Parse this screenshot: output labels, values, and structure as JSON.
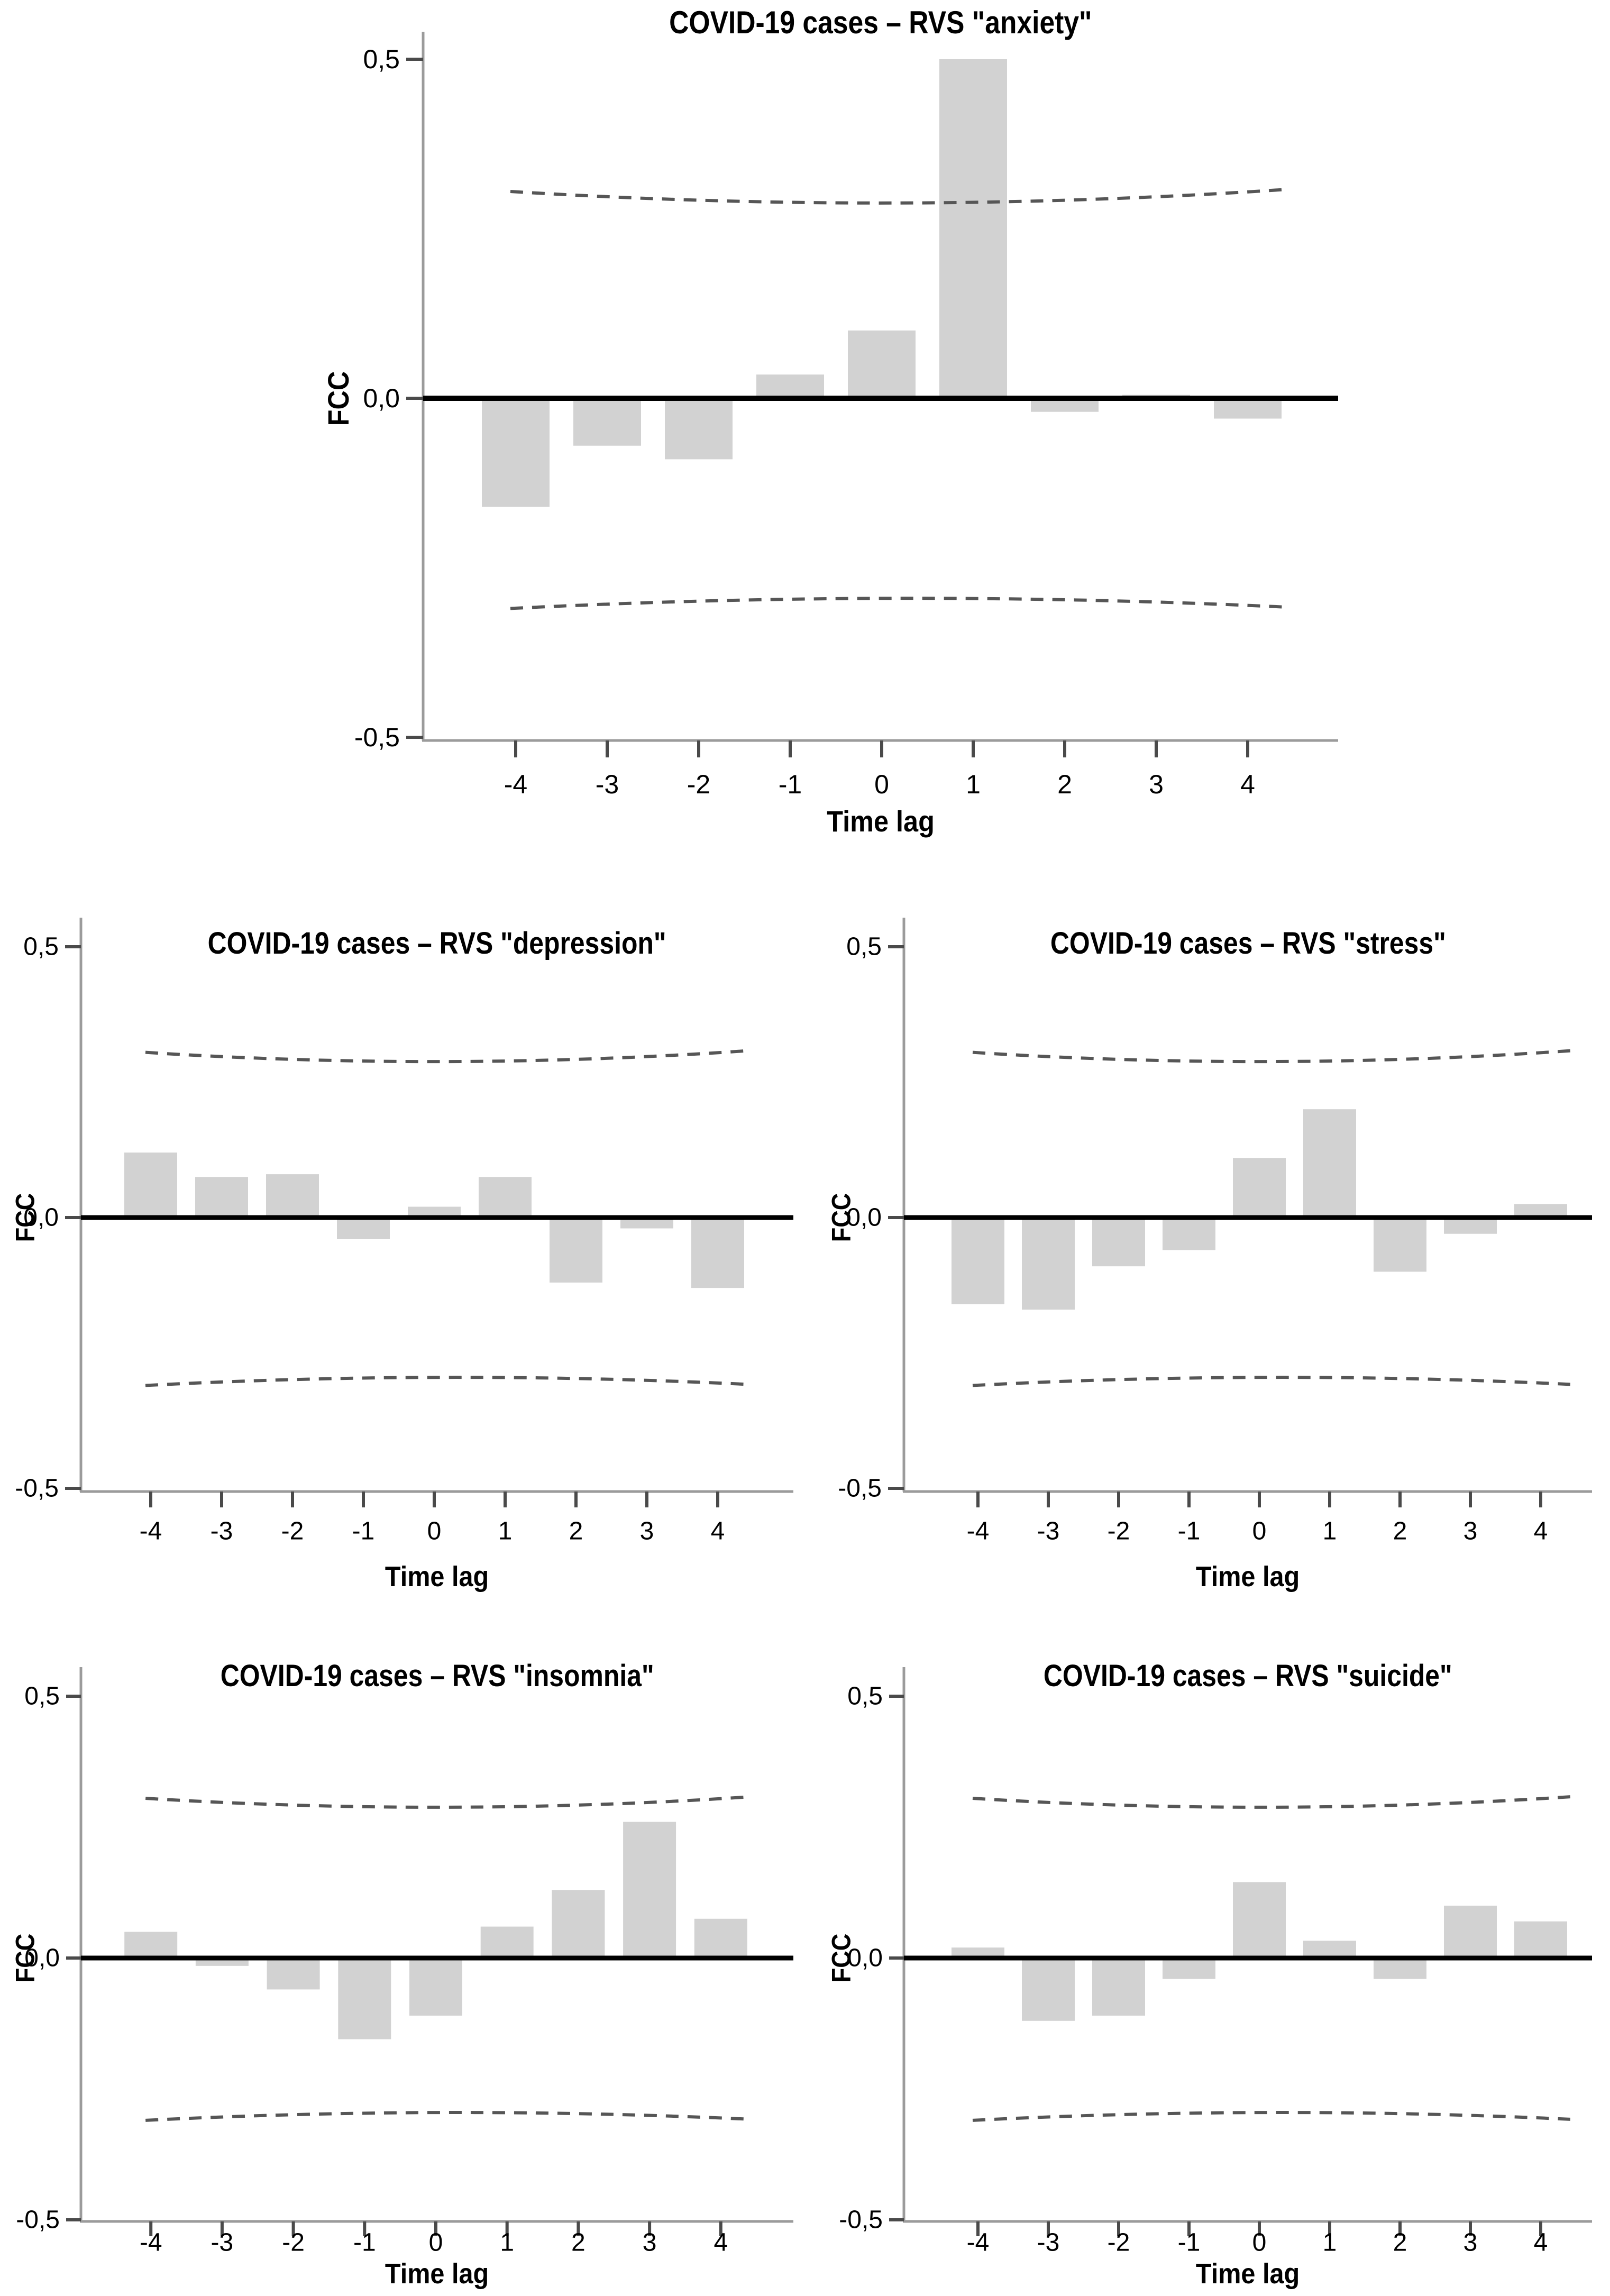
{
  "figure": {
    "background": "#ffffff",
    "bar_color": "#d2d2d2",
    "axis_color": "#9b9b9b",
    "zero_line_color": "#000000",
    "ci_line_color": "#565656",
    "text_color": "#000000"
  },
  "chart_data": [
    {
      "id": "anxiety",
      "type": "bar",
      "title": "COVID-19 cases – RVS \"anxiety\"",
      "xlabel": "Time lag",
      "ylabel": "FCC",
      "ylim": [
        -0.5,
        0.5
      ],
      "grid": false,
      "legend_position": "none",
      "ytick_values": [
        0.5,
        0.0,
        -0.5
      ],
      "ytick_labels": [
        "0,5",
        "0,0",
        "-0,5"
      ],
      "categories": [
        "-4",
        "-3",
        "-2",
        "-1",
        "0",
        "1",
        "2",
        "3",
        "4"
      ],
      "x": [
        -4,
        -3,
        -2,
        -1,
        0,
        1,
        2,
        3,
        4
      ],
      "values": [
        -0.16,
        -0.07,
        -0.09,
        0.035,
        0.1,
        0.5,
        -0.02,
        0.005,
        -0.03
      ],
      "ci_upper": [
        0.305,
        0.288,
        0.308
      ],
      "ci_lower": [
        -0.31,
        -0.295,
        -0.308
      ],
      "ci_style": "dashed"
    },
    {
      "id": "depression",
      "type": "bar",
      "title": "COVID-19 cases – RVS \"depression\"",
      "xlabel": "Time lag",
      "ylabel": "FCC",
      "ylim": [
        -0.5,
        0.5
      ],
      "grid": false,
      "legend_position": "none",
      "ytick_values": [
        0.5,
        0.0,
        -0.5
      ],
      "ytick_labels": [
        "0,5",
        "0,0",
        "-0,5"
      ],
      "categories": [
        "-4",
        "-3",
        "-2",
        "-1",
        "0",
        "1",
        "2",
        "3",
        "4"
      ],
      "x": [
        -4,
        -3,
        -2,
        -1,
        0,
        1,
        2,
        3,
        4
      ],
      "values": [
        0.12,
        0.075,
        0.08,
        -0.04,
        0.02,
        0.075,
        -0.12,
        -0.02,
        -0.13
      ],
      "ci_upper": [
        0.305,
        0.288,
        0.308
      ],
      "ci_lower": [
        -0.31,
        -0.295,
        -0.308
      ],
      "ci_style": "dashed"
    },
    {
      "id": "stress",
      "type": "bar",
      "title": "COVID-19 cases – RVS \"stress\"",
      "xlabel": "Time lag",
      "ylabel": "FCC",
      "ylim": [
        -0.5,
        0.5
      ],
      "grid": false,
      "legend_position": "none",
      "ytick_values": [
        0.5,
        0.0,
        -0.5
      ],
      "ytick_labels": [
        "0,5",
        "0,0",
        "-0,5"
      ],
      "categories": [
        "-4",
        "-3",
        "-2",
        "-1",
        "0",
        "1",
        "2",
        "3",
        "4"
      ],
      "x": [
        -4,
        -3,
        -2,
        -1,
        0,
        1,
        2,
        3,
        4
      ],
      "values": [
        -0.16,
        -0.17,
        -0.09,
        -0.06,
        0.11,
        0.2,
        -0.1,
        -0.03,
        0.025
      ],
      "ci_upper": [
        0.305,
        0.288,
        0.308
      ],
      "ci_lower": [
        -0.31,
        -0.295,
        -0.308
      ],
      "ci_style": "dashed"
    },
    {
      "id": "insomnia",
      "type": "bar",
      "title": "COVID-19 cases – RVS \"insomnia\"",
      "xlabel": "Time lag",
      "ylabel": "FCC",
      "ylim": [
        -0.5,
        0.5
      ],
      "grid": false,
      "legend_position": "none",
      "ytick_values": [
        0.5,
        0.0,
        -0.5
      ],
      "ytick_labels": [
        "0,5",
        "0,0",
        "-0,5"
      ],
      "categories": [
        "-4",
        "-3",
        "-2",
        "-1",
        "0",
        "1",
        "2",
        "3",
        "4"
      ],
      "x": [
        -4,
        -3,
        -2,
        -1,
        0,
        1,
        2,
        3,
        4
      ],
      "values": [
        0.05,
        -0.015,
        -0.06,
        -0.155,
        -0.11,
        0.06,
        0.13,
        0.26,
        0.075
      ],
      "ci_upper": [
        0.305,
        0.288,
        0.308
      ],
      "ci_lower": [
        -0.31,
        -0.295,
        -0.308
      ],
      "ci_style": "dashed"
    },
    {
      "id": "suicide",
      "type": "bar",
      "title": "COVID-19 cases – RVS \"suicide\"",
      "xlabel": "Time lag",
      "ylabel": "FCC",
      "ylim": [
        -0.5,
        0.5
      ],
      "grid": false,
      "legend_position": "none",
      "ytick_values": [
        0.5,
        0.0,
        -0.5
      ],
      "ytick_labels": [
        "0,5",
        "0,0",
        "-0,5"
      ],
      "categories": [
        "-4",
        "-3",
        "-2",
        "-1",
        "0",
        "1",
        "2",
        "3",
        "4"
      ],
      "x": [
        -4,
        -3,
        -2,
        -1,
        0,
        1,
        2,
        3,
        4
      ],
      "values": [
        0.02,
        -0.12,
        -0.11,
        -0.04,
        0.145,
        0.033,
        -0.04,
        0.1,
        0.07
      ],
      "ci_upper": [
        0.305,
        0.288,
        0.308
      ],
      "ci_lower": [
        -0.31,
        -0.295,
        -0.308
      ],
      "ci_style": "dashed"
    }
  ]
}
